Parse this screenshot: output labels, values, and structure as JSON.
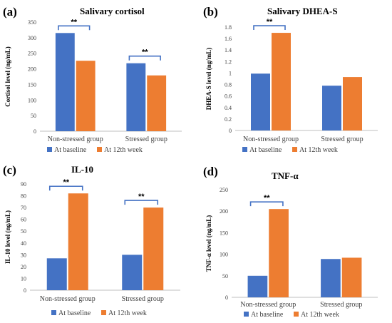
{
  "colors": {
    "baseline": "#4472C4",
    "week12": "#ED7D31",
    "bracket": "#4472C4",
    "axis": "#bfbfbf"
  },
  "chart_data": [
    {
      "panel": "(a)",
      "type": "bar",
      "title": "Salivary cortisol",
      "ylabel": "Cortisol level (ng/mL)",
      "xlabel": "",
      "categories": [
        "Non-stressed group",
        "Stressed group"
      ],
      "series": [
        {
          "name": "At baseline",
          "values": [
            315,
            218
          ]
        },
        {
          "name": "At 12th week",
          "values": [
            226,
            179
          ]
        }
      ],
      "ylim": [
        0,
        350
      ],
      "yticks": [
        "0",
        "50",
        "100",
        "150",
        "200",
        "250",
        "300",
        "350"
      ],
      "significance": [
        {
          "category": 0,
          "label": "**"
        },
        {
          "category": 1,
          "label": "**"
        }
      ],
      "legend": "bottom",
      "grid": false
    },
    {
      "panel": "(b)",
      "type": "bar",
      "title": "Salivary DHEA-S",
      "ylabel": "DHEA-S level (ng/mL)",
      "xlabel": "",
      "categories": [
        "Non-stressed group",
        "Stressed group"
      ],
      "series": [
        {
          "name": "At baseline",
          "values": [
            0.99,
            0.78
          ]
        },
        {
          "name": "At 12th week",
          "values": [
            1.7,
            0.93
          ]
        }
      ],
      "ylim": [
        0,
        1.8
      ],
      "yticks": [
        "0",
        "0.2",
        "0.4",
        "0.6",
        "0.8",
        "1",
        "1.2",
        "1.4",
        "1.6",
        "1.8"
      ],
      "significance": [
        {
          "category": 0,
          "label": "**"
        }
      ],
      "legend": "bottom",
      "grid": false
    },
    {
      "panel": "(c)",
      "type": "bar",
      "title": "IL-10",
      "ylabel": "IL-10 level (ng/mL)",
      "xlabel": "",
      "categories": [
        "Non-stressed group",
        "Stressed group"
      ],
      "series": [
        {
          "name": "At baseline",
          "values": [
            27,
            30
          ]
        },
        {
          "name": "At 12th week",
          "values": [
            82,
            70
          ]
        }
      ],
      "ylim": [
        0,
        90
      ],
      "yticks": [
        "0",
        "10",
        "20",
        "30",
        "40",
        "50",
        "60",
        "70",
        "80",
        "90"
      ],
      "significance": [
        {
          "category": 0,
          "label": "**"
        },
        {
          "category": 1,
          "label": "**"
        }
      ],
      "legend": "bottom",
      "grid": false
    },
    {
      "panel": "(d)",
      "type": "bar",
      "title": "TNF-α",
      "ylabel": "TNF-α level (ng/mL)",
      "xlabel": "",
      "categories": [
        "Non-stressed group",
        "Stressed group"
      ],
      "series": [
        {
          "name": "At baseline",
          "values": [
            50,
            89
          ]
        },
        {
          "name": "At 12th week",
          "values": [
            205,
            92
          ]
        }
      ],
      "ylim": [
        0,
        250
      ],
      "yticks": [
        "0",
        "50",
        "100",
        "150",
        "200",
        "250"
      ],
      "significance": [
        {
          "category": 0,
          "label": "**"
        }
      ],
      "legend": "bottom",
      "grid": false
    }
  ]
}
